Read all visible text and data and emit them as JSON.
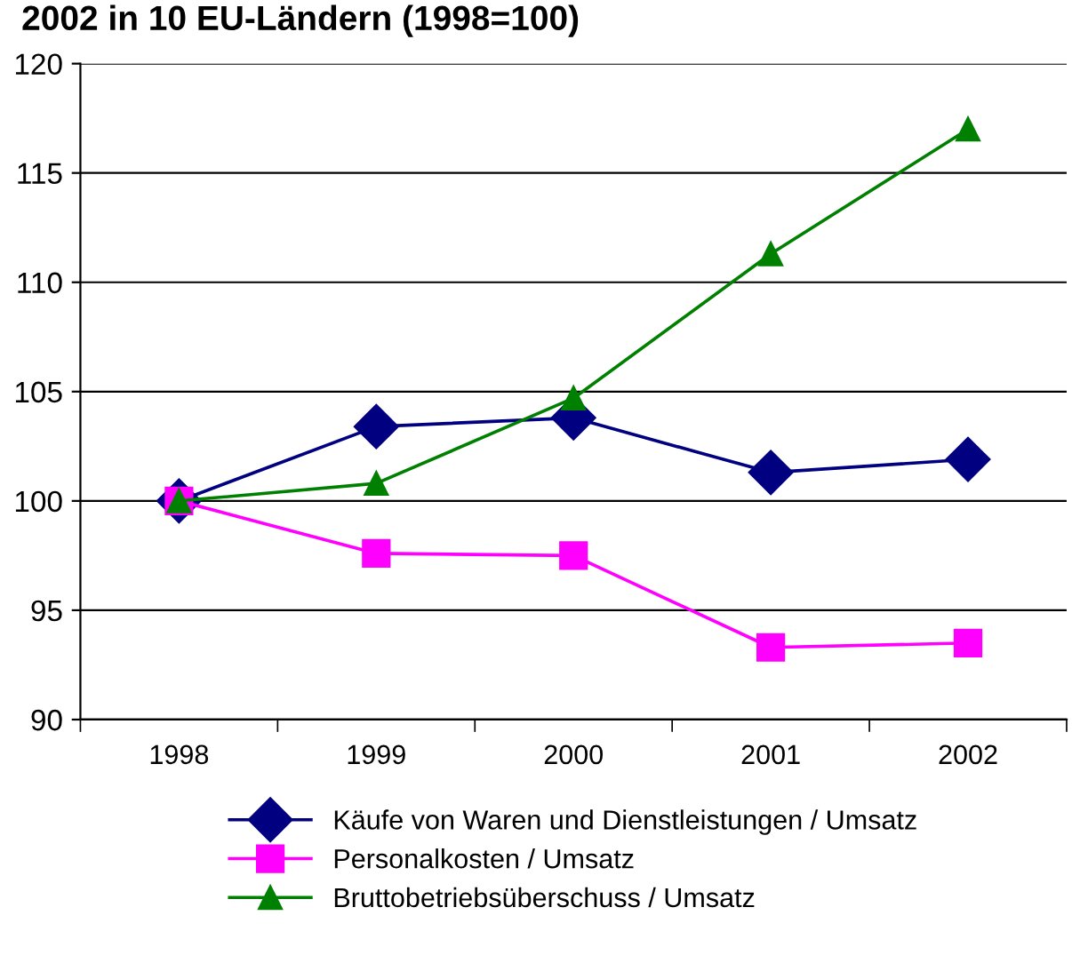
{
  "chart_data": {
    "type": "line",
    "title": "2002 in 10 EU-Ländern (1998=100)",
    "categories": [
      "1998",
      "1999",
      "2000",
      "2001",
      "2002"
    ],
    "series": [
      {
        "name": "Käufe von Waren und Dienstleistungen / Umsatz",
        "color": "#000080",
        "marker": "diamond",
        "values": [
          100,
          103.4,
          103.8,
          101.3,
          101.9
        ]
      },
      {
        "name": "Personalkosten / Umsatz",
        "color": "#ff00ff",
        "marker": "square",
        "values": [
          100,
          97.6,
          97.5,
          93.3,
          93.5
        ]
      },
      {
        "name": "Bruttobetriebsüberschuss / Umsatz",
        "color": "#008000",
        "marker": "triangle",
        "values": [
          100,
          100.8,
          104.7,
          111.3,
          117.0
        ]
      }
    ],
    "ylim": [
      90,
      120
    ],
    "yticks": [
      90,
      95,
      100,
      105,
      110,
      115,
      120
    ],
    "grid": "y",
    "legend": "bottom",
    "line_style": "solid"
  }
}
